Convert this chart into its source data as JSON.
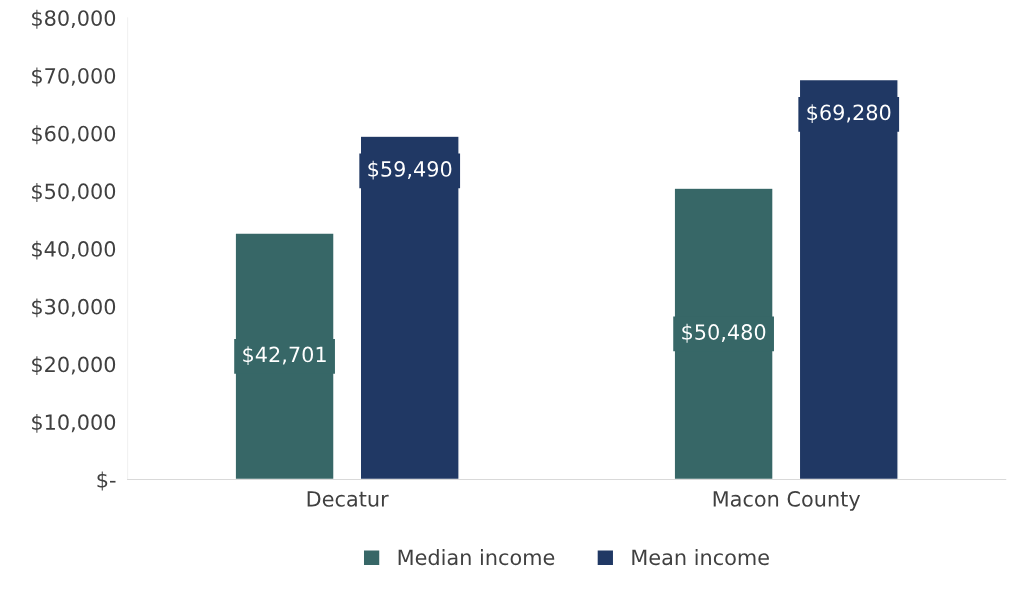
{
  "chart_data": {
    "type": "bar",
    "categories": [
      "Decatur",
      "Macon County"
    ],
    "series": [
      {
        "name": "Median income",
        "color": "#376767",
        "values": [
          42701,
          50480
        ],
        "value_labels": [
          "$42,701",
          "$50,480"
        ]
      },
      {
        "name": "Mean income",
        "color": "#203864",
        "values": [
          59490,
          69280
        ],
        "value_labels": [
          "$59,490",
          "$69,280"
        ]
      }
    ],
    "ylim": [
      0,
      80000
    ],
    "yticks": [
      {
        "value": 0,
        "label": "$-"
      },
      {
        "value": 10000,
        "label": "$10,000"
      },
      {
        "value": 20000,
        "label": "$20,000"
      },
      {
        "value": 30000,
        "label": "$30,000"
      },
      {
        "value": 40000,
        "label": "$40,000"
      },
      {
        "value": 50000,
        "label": "$50,000"
      },
      {
        "value": 60000,
        "label": "$60,000"
      },
      {
        "value": 70000,
        "label": "$70,000"
      },
      {
        "value": 80000,
        "label": "$80,000"
      }
    ],
    "grid": false,
    "legend": "bottom"
  }
}
